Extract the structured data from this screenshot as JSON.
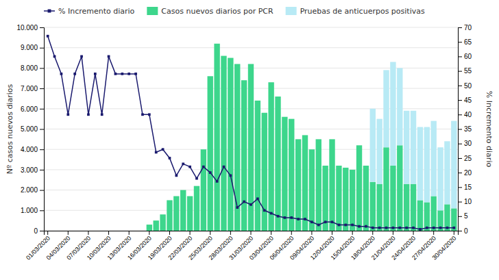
{
  "chart_data": {
    "type": "bar",
    "categories": [
      "01/03/2020",
      null,
      null,
      "04/03/2020",
      null,
      null,
      "07/03/2020",
      null,
      null,
      "10/03/2020",
      null,
      null,
      "13/03/2020",
      null,
      null,
      "16/03/2020",
      null,
      null,
      "19/03/2020",
      null,
      null,
      "22/03/2020",
      null,
      null,
      "25/03/2020",
      null,
      null,
      "28/03/2020",
      null,
      null,
      "31/03/2020",
      null,
      null,
      "03/04/2020",
      null,
      null,
      "06/04/2020",
      null,
      null,
      "09/04/2020",
      null,
      null,
      "12/04/2020",
      null,
      null,
      "15/04/2020",
      null,
      null,
      "18/04/2020",
      null,
      null,
      "21/04/2020",
      null,
      null,
      "24/04/2020",
      null,
      null,
      "27/04/2020",
      null,
      null,
      "30/04/2020"
    ],
    "series": [
      {
        "name": "% Incremento diario",
        "type": "line",
        "axis": "y2",
        "color": "#1a1a6e",
        "marker": "square",
        "values": [
          67,
          60,
          54,
          40,
          54,
          60,
          40,
          54,
          40,
          60,
          54,
          54,
          54,
          54,
          40,
          40,
          27,
          28,
          25,
          19,
          23,
          22,
          18,
          22,
          20,
          17,
          22,
          19,
          8,
          10,
          9,
          11,
          7,
          6,
          5,
          4.5,
          4.5,
          4,
          4,
          3,
          2,
          3,
          3,
          2,
          2,
          2,
          1.5,
          1.5,
          1,
          1,
          1,
          1,
          1,
          1,
          1,
          0.5,
          1,
          1,
          1,
          1,
          1
        ]
      },
      {
        "name": "Casos nuevos diarios por PCR",
        "type": "bar",
        "color": "#3dd68c",
        "values": [
          0,
          0,
          0,
          0,
          0,
          0,
          0,
          0,
          0,
          0,
          0,
          0,
          0,
          0,
          0,
          300,
          500,
          800,
          1500,
          1700,
          2000,
          1700,
          2200,
          4000,
          7600,
          9200,
          8600,
          8500,
          8200,
          7400,
          8200,
          6400,
          5800,
          7300,
          6600,
          5600,
          5500,
          4500,
          4700,
          4000,
          4500,
          3200,
          4500,
          3200,
          3100,
          3000,
          4200,
          3200,
          2400,
          2300,
          4100,
          3200,
          4200,
          2300,
          2300,
          1500,
          1400,
          1700,
          1000,
          1300,
          1100
        ]
      },
      {
        "name": "Pruebas de anticuerpos positivas",
        "type": "bar",
        "color": "#b8eaf5",
        "values": [
          0,
          0,
          0,
          0,
          0,
          0,
          0,
          0,
          0,
          0,
          0,
          0,
          0,
          0,
          0,
          0,
          0,
          0,
          0,
          0,
          0,
          0,
          0,
          0,
          0,
          0,
          0,
          0,
          0,
          0,
          0,
          0,
          0,
          0,
          0,
          0,
          0,
          0,
          0,
          0,
          0,
          0,
          0,
          0,
          0,
          0,
          0,
          0,
          3600,
          3200,
          3800,
          5100,
          3800,
          3600,
          3600,
          3600,
          3700,
          3700,
          3100,
          3100,
          4300
        ]
      }
    ],
    "stacked": true,
    "ylabel": "Nº casos nuevos diarios",
    "y2label": "% Incremento diario",
    "ylim": [
      0,
      10000
    ],
    "yticks": [
      0,
      {
        "value": 1000,
        "label": "1.000"
      },
      {
        "value": 2000,
        "label": "2.000"
      },
      {
        "value": 3000,
        "label": "3.000"
      },
      {
        "value": 4000,
        "label": "4.000"
      },
      {
        "value": 5000,
        "label": "5.000"
      },
      {
        "value": 6000,
        "label": "6.000"
      },
      {
        "value": 7000,
        "label": "7.000"
      },
      {
        "value": 8000,
        "label": "8.000"
      },
      {
        "value": 9000,
        "label": "9.000"
      },
      {
        "value": 10000,
        "label": "10.000"
      }
    ],
    "y2lim": [
      0,
      70
    ],
    "y2ticks": [
      0,
      5,
      10,
      15,
      20,
      25,
      30,
      35,
      40,
      45,
      50,
      55,
      60,
      65,
      70
    ],
    "grid": true,
    "legend": "upper left"
  }
}
